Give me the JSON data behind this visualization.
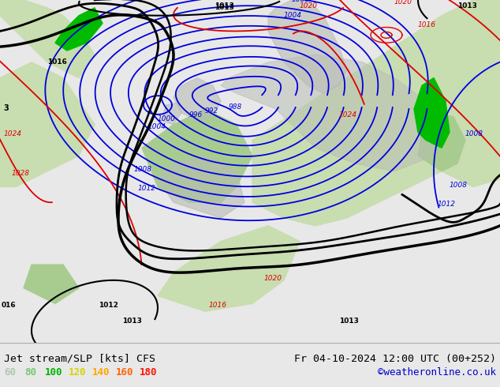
{
  "title_left": "Jet stream/SLP [kts] CFS",
  "title_right": "Fr 04-10-2024 12:00 UTC (00+252)",
  "credit": "©weatheronline.co.uk",
  "legend_values": [
    60,
    80,
    100,
    120,
    140,
    160,
    180
  ],
  "legend_colors": [
    "#b0c8b0",
    "#78c878",
    "#00b400",
    "#d4d400",
    "#ffa500",
    "#ff6400",
    "#ff1400"
  ],
  "bg_color": "#e8e8e8",
  "map_bg": "#e0e4dc",
  "bottom_bar_color": "#e8e8e8",
  "text_color": "#000000",
  "credit_color": "#0000cc",
  "map_light_green": "#c8ddb8",
  "map_mid_green": "#a0cc88",
  "map_bright_green": "#00bb00",
  "slp_blue": "#0000dd",
  "slp_red": "#dd0000",
  "slp_black": "#000000"
}
